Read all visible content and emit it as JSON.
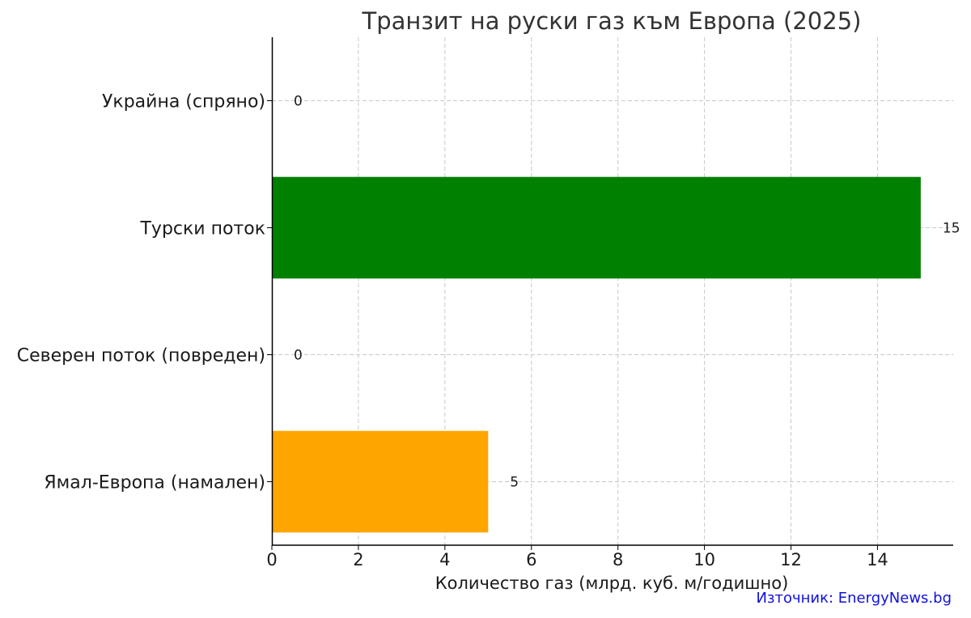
{
  "chart_data": {
    "type": "bar",
    "orientation": "horizontal",
    "title": "Транзит на руски газ към Европа (2025)",
    "xlabel": "Количество газ (млрд. куб. м/годишно)",
    "ylabel": "",
    "categories": [
      "Украйна (спряно)",
      "Турски поток",
      "Северен поток (повреден)",
      "Ямал-Европа (намален)"
    ],
    "values": [
      0,
      15,
      0,
      5
    ],
    "data_labels": [
      "0",
      "15",
      "0",
      "5"
    ],
    "colors": [
      "#808080",
      "#008000",
      "#808080",
      "#ffa500"
    ],
    "xlim": [
      0,
      15.75
    ],
    "x_ticks": [
      0,
      2,
      4,
      6,
      8,
      10,
      12,
      14
    ],
    "grid": true
  },
  "source_note": "Източник: EnergyNews.bg"
}
